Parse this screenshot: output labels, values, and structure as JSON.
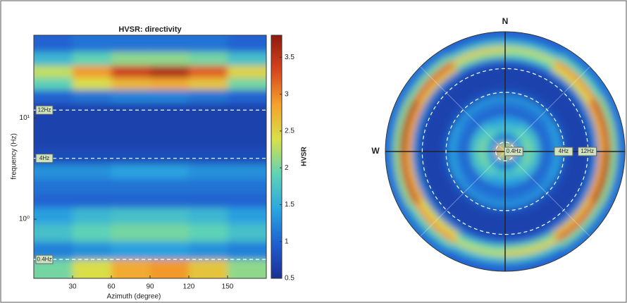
{
  "chart_data": {
    "type": "heatmap",
    "title": "HVSR: directivity",
    "xlabel": "Azimuth (degree)",
    "ylabel": "frequency (Hz)",
    "xlim": [
      0,
      180
    ],
    "xticks": [
      30,
      60,
      90,
      120,
      150
    ],
    "ylim": [
      0.26,
      66
    ],
    "log_y": true,
    "yticks": [
      {
        "value": 1,
        "label": "10⁰"
      },
      {
        "value": 10,
        "label": "10¹"
      }
    ],
    "x_edges": [
      0,
      30,
      60,
      90,
      120,
      150,
      180
    ],
    "y_edges": [
      66,
      45,
      33,
      25,
      19,
      14,
      10,
      7,
      5,
      3.5,
      2.5,
      1.8,
      1.3,
      0.9,
      0.6,
      0.4,
      0.26
    ],
    "z": [
      [
        1.0,
        1.1,
        1.1,
        1.1,
        1.1,
        1.0
      ],
      [
        1.6,
        1.9,
        2.1,
        2.1,
        2.0,
        1.7
      ],
      [
        2.3,
        2.9,
        3.4,
        3.6,
        3.2,
        2.5
      ],
      [
        1.9,
        2.4,
        2.7,
        2.8,
        2.6,
        2.0
      ],
      [
        1.0,
        1.1,
        1.2,
        1.2,
        1.1,
        1.0
      ],
      [
        0.7,
        0.7,
        0.7,
        0.7,
        0.7,
        0.7
      ],
      [
        0.7,
        0.7,
        0.7,
        0.7,
        0.7,
        0.7
      ],
      [
        0.7,
        0.7,
        0.7,
        0.7,
        0.7,
        0.7
      ],
      [
        0.8,
        0.8,
        0.8,
        0.8,
        0.8,
        0.8
      ],
      [
        1.3,
        1.3,
        1.4,
        1.4,
        1.3,
        1.3
      ],
      [
        1.1,
        1.1,
        1.1,
        1.1,
        1.1,
        1.1
      ],
      [
        1.0,
        1.0,
        1.0,
        1.0,
        1.0,
        1.0
      ],
      [
        1.4,
        1.6,
        1.7,
        1.7,
        1.6,
        1.4
      ],
      [
        1.7,
        1.9,
        2.0,
        2.0,
        1.9,
        1.7
      ],
      [
        1.2,
        1.3,
        1.4,
        1.4,
        1.3,
        1.2
      ],
      [
        2.0,
        2.4,
        2.8,
        2.9,
        2.6,
        2.1
      ]
    ],
    "annotations": [
      {
        "value": 12,
        "label": "12Hz"
      },
      {
        "value": 4,
        "label": "4Hz"
      },
      {
        "value": 0.4,
        "label": "0.4Hz"
      }
    ],
    "colorbar_label": "HVSR",
    "clim": [
      0.5,
      3.8
    ],
    "cticks": [
      0.5,
      1,
      1.5,
      2,
      2.5,
      3,
      3.5
    ],
    "colormap": [
      "#1c2f93",
      "#1f5fd0",
      "#2aa7e0",
      "#5fd3b5",
      "#d8e04a",
      "#f4a32c",
      "#d7451f",
      "#8e1a10"
    ],
    "compass": [
      "N",
      "W"
    ]
  }
}
